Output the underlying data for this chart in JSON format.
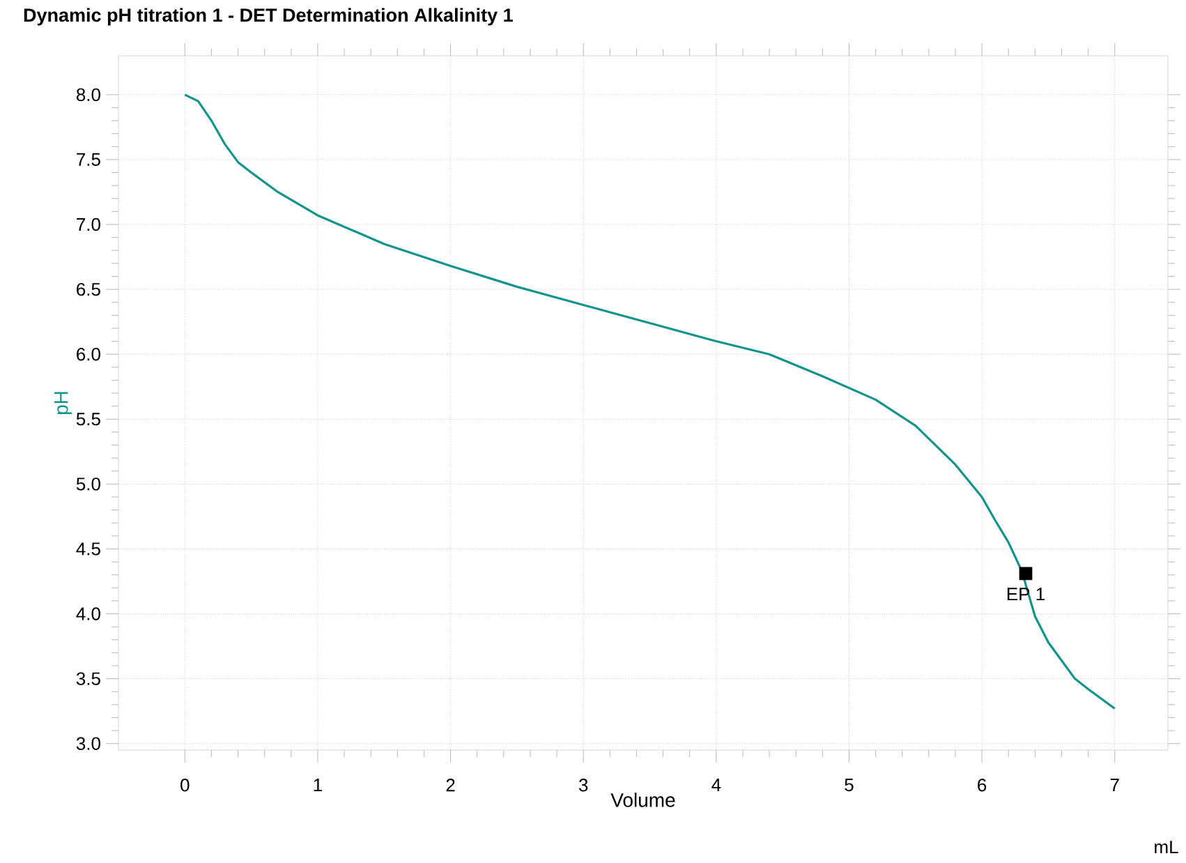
{
  "chart_data": {
    "type": "line",
    "title": "Dynamic pH titration 1 - DET Determination Alkalinity 1",
    "xlabel": "Volume",
    "ylabel": "pH",
    "xlim": [
      -0.5,
      7.4
    ],
    "ylim": [
      2.95,
      8.3
    ],
    "xticks": [
      0,
      1,
      2,
      3,
      4,
      5,
      6,
      7
    ],
    "yticks": [
      {
        "value": 3,
        "label": "3.0"
      },
      {
        "value": 3.5,
        "label": "3.5"
      },
      {
        "value": 4,
        "label": "4.0"
      },
      {
        "value": 4.5,
        "label": "4.5"
      },
      {
        "value": 5,
        "label": "5.0"
      },
      {
        "value": 5.5,
        "label": "5.5"
      },
      {
        "value": 6,
        "label": "6.0"
      },
      {
        "value": 6.5,
        "label": "6.5"
      },
      {
        "value": 7,
        "label": "7.0"
      },
      {
        "value": 7.5,
        "label": "7.5"
      },
      {
        "value": 8,
        "label": "8.0"
      }
    ],
    "grid": true,
    "line_style": "solid",
    "series": [
      {
        "color": "#11948c",
        "marker": "none",
        "x": [
          0,
          0.1,
          0.2,
          0.3,
          0.4,
          0.5,
          0.7,
          1.0,
          1.5,
          2.0,
          2.5,
          3.0,
          3.5,
          4.0,
          4.4,
          4.8,
          5.2,
          5.5,
          5.8,
          6.0,
          6.1,
          6.2,
          6.3,
          6.4,
          6.5,
          6.7,
          6.8,
          7.0
        ],
        "values": [
          8.0,
          7.95,
          7.8,
          7.62,
          7.48,
          7.4,
          7.25,
          7.07,
          6.85,
          6.68,
          6.52,
          6.38,
          6.24,
          6.1,
          6.0,
          5.83,
          5.65,
          5.45,
          5.15,
          4.9,
          4.72,
          4.55,
          4.33,
          3.98,
          3.78,
          3.5,
          3.42,
          3.27
        ]
      },
      {
        "type": "scatter",
        "color": "#000000",
        "marker": "square",
        "x": [
          6.33
        ],
        "values": [
          4.31
        ]
      }
    ],
    "annotations": [
      {
        "text": "EP 1",
        "x": 6.33,
        "y": 4.31
      },
      "mL"
    ]
  }
}
